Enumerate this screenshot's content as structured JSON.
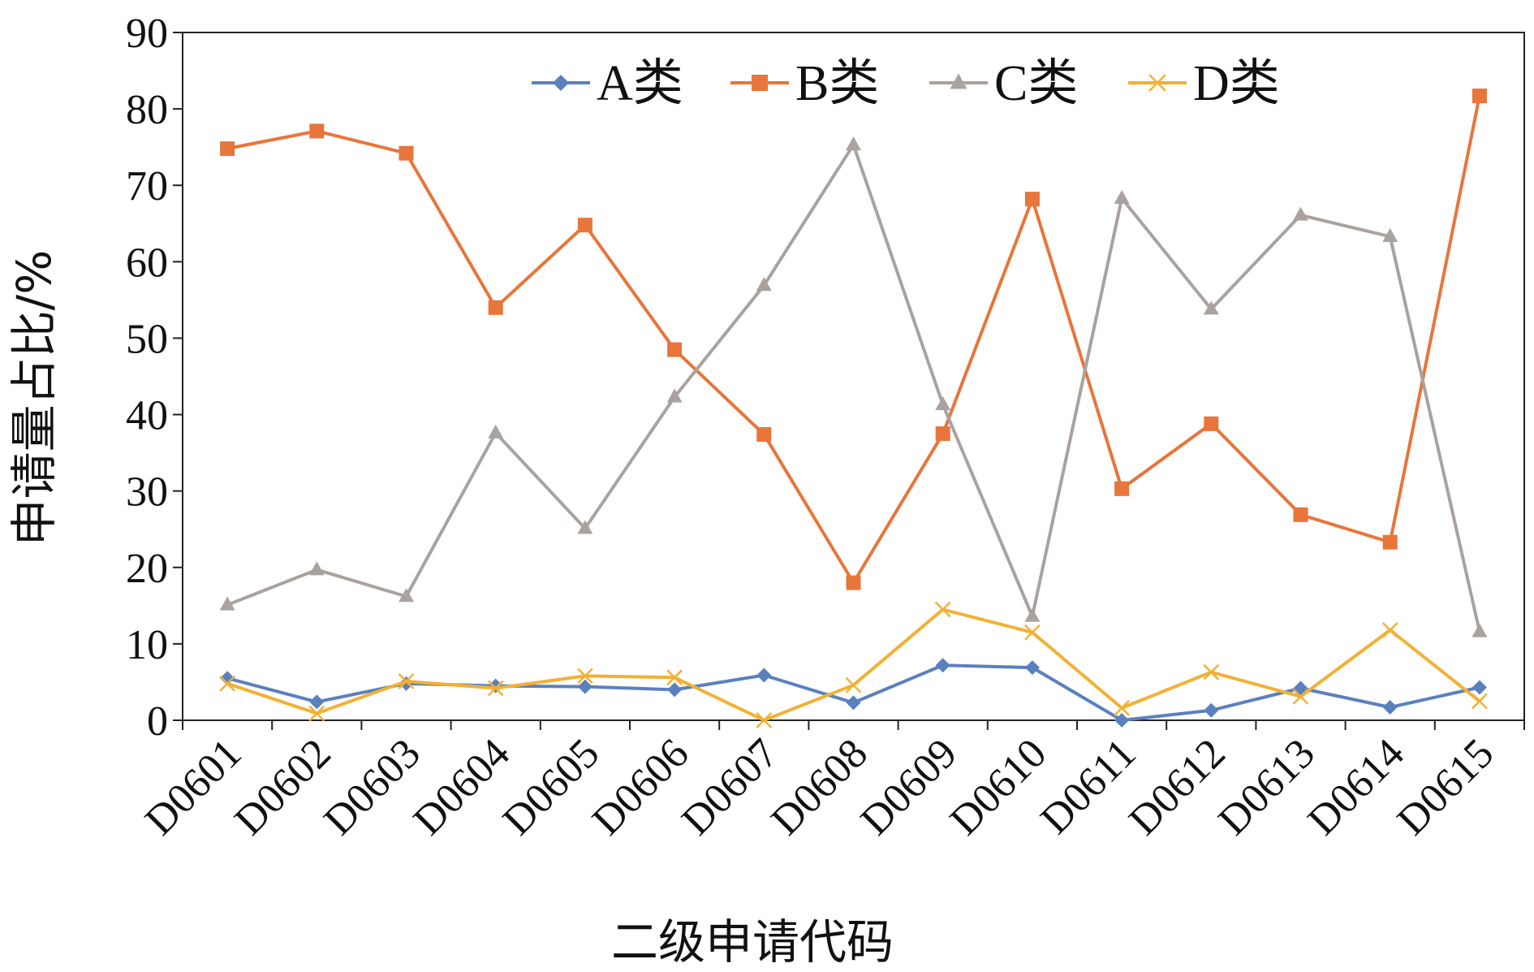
{
  "chart_data": {
    "type": "line",
    "title": "",
    "xlabel": "二级申请代码",
    "ylabel": "申请量占比/%",
    "ylim": [
      0,
      90
    ],
    "yticks": [
      "0",
      "10",
      "20",
      "30",
      "40",
      "50",
      "60",
      "70",
      "80",
      "90"
    ],
    "grid": false,
    "legend_position": "top",
    "categories": [
      "D0601",
      "D0602",
      "D0603",
      "D0604",
      "D0605",
      "D0606",
      "D0607",
      "D0608",
      "D0609",
      "D0610",
      "D0611",
      "D0612",
      "D0613",
      "D0614",
      "D0615"
    ],
    "series": [
      {
        "name": "A类",
        "color": "#5b80be",
        "marker": "diamond",
        "values": [
          5.5,
          2.4,
          4.8,
          4.5,
          4.4,
          4.0,
          5.9,
          2.3,
          7.2,
          6.9,
          0.0,
          1.3,
          4.2,
          1.7,
          4.3
        ]
      },
      {
        "name": "B类",
        "color": "#e8753a",
        "marker": "square",
        "values": [
          74.8,
          77.1,
          74.2,
          54.0,
          64.8,
          48.5,
          37.4,
          18.0,
          37.5,
          68.2,
          30.3,
          38.8,
          26.9,
          23.3,
          81.7
        ]
      },
      {
        "name": "C类",
        "color": "#a9a29f",
        "marker": "triangle",
        "values": [
          15.1,
          19.7,
          16.2,
          37.6,
          25.1,
          42.3,
          56.9,
          75.3,
          41.3,
          13.6,
          68.3,
          53.8,
          66.1,
          63.3,
          11.6
        ]
      },
      {
        "name": "D类",
        "color": "#f2b134",
        "marker": "x",
        "values": [
          4.8,
          0.9,
          5.1,
          4.2,
          5.8,
          5.6,
          0.0,
          4.6,
          14.5,
          11.5,
          1.6,
          6.3,
          3.1,
          11.8,
          2.5
        ]
      }
    ]
  }
}
